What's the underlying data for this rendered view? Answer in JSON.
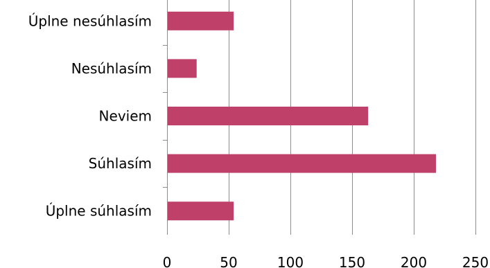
{
  "chart_data": {
    "type": "bar",
    "orientation": "horizontal",
    "categories": [
      "Úplne nesúhlasím",
      "Nesúhlasím",
      "Neviem",
      "Súhlasím",
      "Úplne súhlasím"
    ],
    "values": [
      54,
      24,
      163,
      218,
      54
    ],
    "xlim": [
      0,
      250
    ],
    "xticks": [
      "0",
      "50",
      "100",
      "150",
      "200",
      "250"
    ],
    "grid": true,
    "legend": "none",
    "bar_color": "#bf4069"
  }
}
